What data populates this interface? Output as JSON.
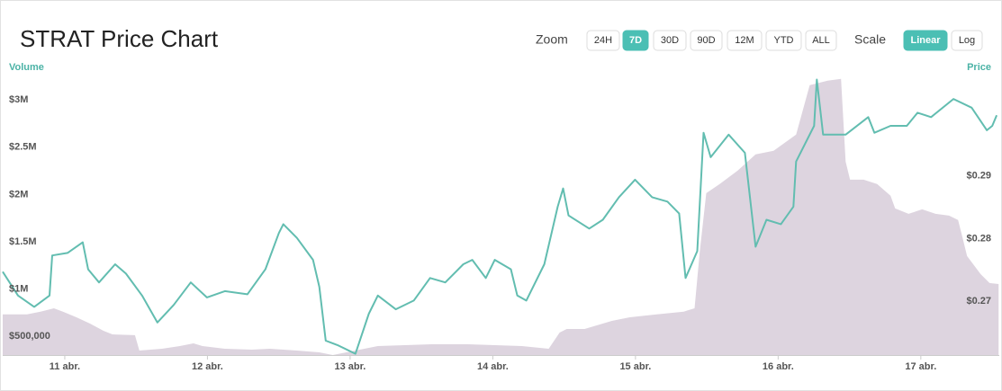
{
  "controls": {
    "zoom_label": "Zoom",
    "zoom_options": [
      "24H",
      "7D",
      "30D",
      "90D",
      "12M",
      "YTD",
      "ALL"
    ],
    "zoom_active": "7D",
    "scale_label": "Scale",
    "scale_options": [
      "Linear",
      "Log"
    ],
    "scale_active": "Linear"
  },
  "chart_data": {
    "type": "line",
    "title": "STRAT Price Chart",
    "y_label": "Volume",
    "y2_label": "Price",
    "xlim": [
      -0.435,
      6.55
    ],
    "xticks": [
      {
        "value": 0,
        "label": "11 abr."
      },
      {
        "value": 1,
        "label": "12 abr."
      },
      {
        "value": 2,
        "label": "13 abr."
      },
      {
        "value": 3,
        "label": "14 abr."
      },
      {
        "value": 4,
        "label": "15 abr."
      },
      {
        "value": 5,
        "label": "16 abr."
      },
      {
        "value": 6,
        "label": "17 abr."
      }
    ],
    "ylim": [
      300000,
      3250000
    ],
    "yticks": [
      {
        "value": 500000,
        "label": "$500,000"
      },
      {
        "value": 1000000,
        "label": "$1M"
      },
      {
        "value": 1500000,
        "label": "$1.5M"
      },
      {
        "value": 2000000,
        "label": "$2M"
      },
      {
        "value": 2500000,
        "label": "$2.5M"
      },
      {
        "value": 3000000,
        "label": "$3M"
      }
    ],
    "y2lim": [
      0.2614,
      0.3059
    ],
    "y2ticks": [
      {
        "value": 0.27,
        "label": "$0.27"
      },
      {
        "value": 0.28,
        "label": "$0.28"
      },
      {
        "value": 0.29,
        "label": "$0.29"
      }
    ],
    "series": [
      {
        "name": "Volume",
        "kind": "area",
        "color": "#ddd4df",
        "x": [
          -0.435,
          -0.265,
          -0.17,
          -0.076,
          -0.013,
          0.082,
          0.177,
          0.271,
          0.334,
          0.492,
          0.523,
          0.681,
          0.807,
          0.902,
          0.965,
          1.122,
          1.311,
          1.438,
          1.627,
          1.784,
          1.879,
          2.131,
          2.194,
          2.383,
          2.573,
          2.825,
          3.203,
          3.392,
          3.468,
          3.518,
          3.644,
          3.834,
          3.96,
          4.149,
          4.338,
          4.414,
          4.451,
          4.496,
          4.59,
          4.716,
          4.842,
          4.968,
          5.126,
          5.221,
          5.347,
          5.441,
          5.473,
          5.504,
          5.599,
          5.694,
          5.788,
          5.82,
          5.914,
          6.009,
          6.103,
          6.198,
          6.261,
          6.293,
          6.324,
          6.419,
          6.482,
          6.545
        ],
        "values": [
          730000,
          730000,
          760000,
          795000,
          760000,
          700000,
          633000,
          557000,
          519000,
          510000,
          348000,
          367000,
          395000,
          424000,
          395000,
          367000,
          357000,
          367000,
          348000,
          329000,
          300000,
          376000,
          395000,
          405000,
          414000,
          414000,
          395000,
          367000,
          538000,
          576000,
          576000,
          662000,
          700000,
          730000,
          760000,
          795000,
          1395000,
          2014000,
          2110000,
          2252000,
          2424000,
          2462000,
          2633000,
          3157000,
          3205000,
          3224000,
          2348000,
          2157000,
          2157000,
          2110000,
          1986000,
          1852000,
          1795000,
          1843000,
          1795000,
          1776000,
          1729000,
          1538000,
          1348000,
          1157000,
          1062000,
          1052000
        ]
      },
      {
        "name": "Price",
        "kind": "line",
        "axis": "y2",
        "color": "#62bdb0",
        "x": [
          -0.435,
          -0.328,
          -0.214,
          -0.107,
          -0.088,
          0.019,
          0.126,
          0.164,
          0.24,
          0.353,
          0.429,
          0.542,
          0.649,
          0.763,
          0.883,
          0.996,
          1.122,
          1.28,
          1.406,
          1.501,
          1.532,
          1.627,
          1.74,
          1.784,
          1.829,
          1.911,
          2.037,
          2.131,
          2.194,
          2.32,
          2.446,
          2.56,
          2.667,
          2.793,
          2.856,
          2.951,
          3.014,
          3.127,
          3.172,
          3.235,
          3.361,
          3.455,
          3.493,
          3.531,
          3.676,
          3.771,
          3.884,
          3.997,
          4.117,
          4.224,
          4.306,
          4.351,
          4.433,
          4.477,
          4.527,
          4.653,
          4.767,
          4.842,
          4.918,
          5.019,
          5.107,
          5.126,
          5.252,
          5.271,
          5.315,
          5.473,
          5.631,
          5.675,
          5.788,
          5.902,
          5.977,
          6.072,
          6.229,
          6.356,
          6.463,
          6.501,
          6.532
        ],
        "values": [
          0.2747,
          0.2709,
          0.2691,
          0.2709,
          0.2773,
          0.2777,
          0.2794,
          0.2751,
          0.273,
          0.2759,
          0.2744,
          0.2709,
          0.2666,
          0.2694,
          0.273,
          0.2706,
          0.2716,
          0.2711,
          0.2751,
          0.2809,
          0.2823,
          0.2801,
          0.2766,
          0.2723,
          0.2637,
          0.263,
          0.2616,
          0.268,
          0.2709,
          0.2687,
          0.2701,
          0.2737,
          0.273,
          0.2759,
          0.2766,
          0.2737,
          0.2766,
          0.2751,
          0.2709,
          0.2701,
          0.2759,
          0.2851,
          0.288,
          0.2837,
          0.2816,
          0.283,
          0.2866,
          0.2894,
          0.2866,
          0.2859,
          0.284,
          0.2737,
          0.278,
          0.2969,
          0.293,
          0.2966,
          0.2937,
          0.2787,
          0.283,
          0.2823,
          0.2851,
          0.2923,
          0.298,
          0.3054,
          0.2966,
          0.2966,
          0.2994,
          0.2969,
          0.298,
          0.298,
          0.3001,
          0.2994,
          0.3023,
          0.3009,
          0.2973,
          0.298,
          0.2997
        ]
      }
    ]
  }
}
